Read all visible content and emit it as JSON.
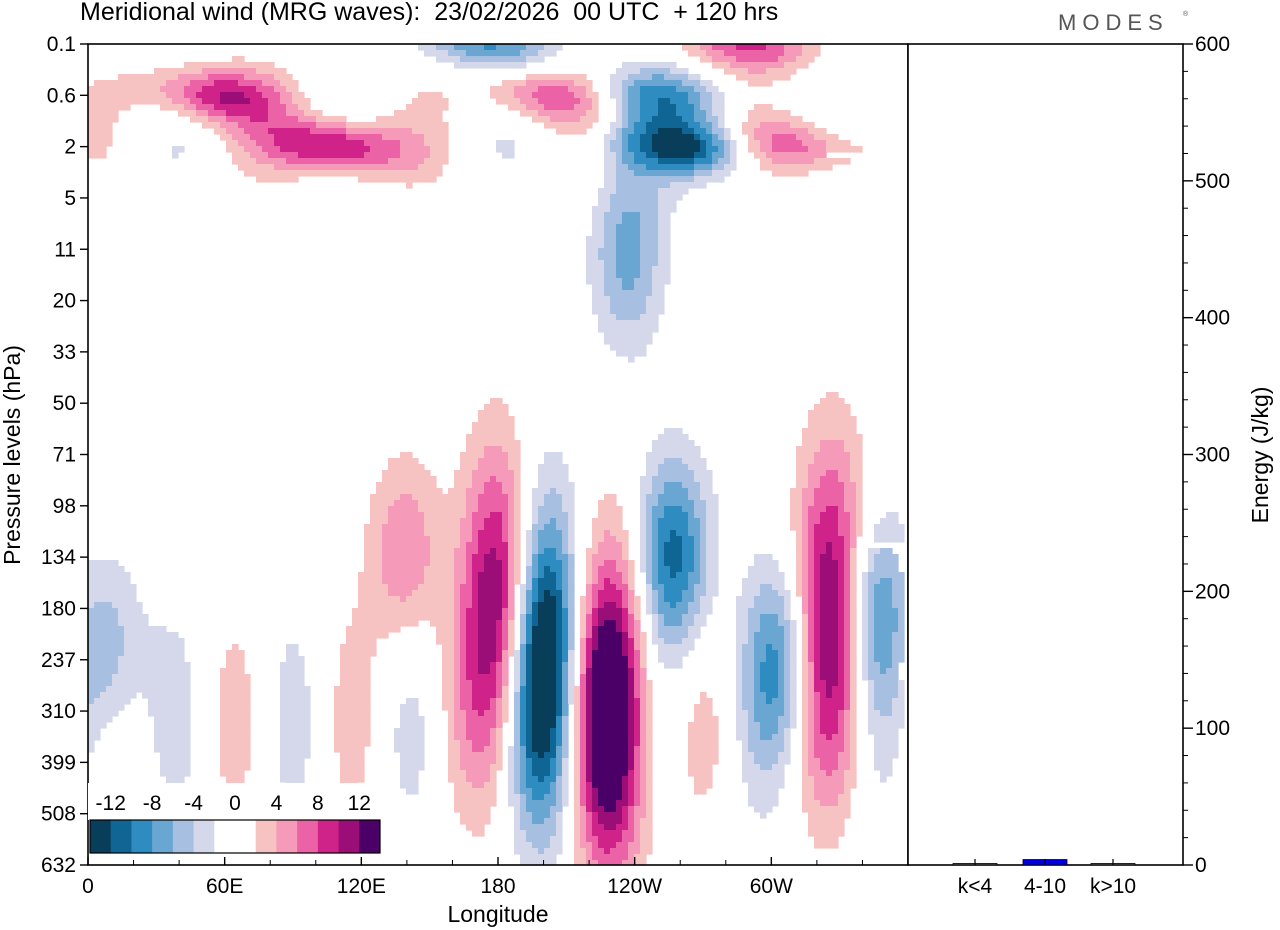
{
  "header": {
    "title": "Meridional wind (MRG waves):  23/02/2026  00 UTC  + 120 hrs",
    "brand": "MODES",
    "brand_mark": "®"
  },
  "colors": {
    "neg": [
      "#083e5a",
      "#0f6694",
      "#2e8cc1",
      "#6aa6d2",
      "#a7bfe0",
      "#d5d8ea"
    ],
    "zero": "#ffffff",
    "pos": [
      "#f7c3c2",
      "#f59ab8",
      "#ec62a7",
      "#cf238a",
      "#9b0d77",
      "#4a0066"
    ],
    "bar": "#0000dd"
  },
  "chart_data": [
    {
      "type": "heatmap",
      "title": "Meridional wind (MRG waves):  23/02/2026  00 UTC  + 120 hrs",
      "xlabel": "Longitude",
      "ylabel": "Pressure levels (hPa)",
      "x_ticks": [
        "0",
        "60E",
        "120E",
        "180",
        "120W",
        "60W"
      ],
      "y_levels": [
        "0.1",
        "0.6",
        "2",
        "5",
        "11",
        "20",
        "33",
        "50",
        "71",
        "98",
        "134",
        "180",
        "237",
        "310",
        "399",
        "508",
        "632"
      ],
      "colorbar": {
        "labels": [
          "-12",
          "-8",
          "-4",
          "0",
          "4",
          "8",
          "12"
        ],
        "levels": [
          -14,
          -12,
          -10,
          -8,
          -6,
          -4,
          -2,
          2,
          4,
          6,
          8,
          10,
          12,
          14
        ]
      },
      "features": [
        {
          "lon": 200,
          "level": "237",
          "sign": -1,
          "amplitude": 18
        },
        {
          "lon": 230,
          "level": "310",
          "sign": 1,
          "amplitude": 18
        },
        {
          "lon": 181,
          "level": "180",
          "sign": 1,
          "amplitude": 14
        },
        {
          "lon": 257,
          "level": "134",
          "sign": -1,
          "amplitude": 11
        },
        {
          "lon": 327,
          "level": "180",
          "sign": 1,
          "amplitude": 14
        },
        {
          "lon": 344,
          "level": "180",
          "sign": -1,
          "amplitude": 9
        },
        {
          "lon": 305,
          "level": "237",
          "sign": -1,
          "amplitude": 8
        },
        {
          "lon": 9,
          "level": "237",
          "sign": -1,
          "amplitude": 7
        },
        {
          "lon": 139,
          "level": "134",
          "sign": 1,
          "amplitude": 6
        },
        {
          "lon": 237,
          "level": "11",
          "sign": -1,
          "amplitude": 7
        },
        {
          "lon": 108,
          "level": "2",
          "sign": 1,
          "amplitude": 12
        },
        {
          "lon": 56,
          "level": "0.6",
          "sign": 1,
          "amplitude": 10
        },
        {
          "lon": 175,
          "level": "0.1",
          "sign": -1,
          "amplitude": 8
        },
        {
          "lon": 202,
          "level": "0.6",
          "sign": 1,
          "amplitude": 8
        },
        {
          "lon": 248,
          "level": "0.6",
          "sign": -1,
          "amplitude": 8
        },
        {
          "lon": 264,
          "level": "2",
          "sign": -1,
          "amplitude": 12
        },
        {
          "lon": 290,
          "level": "0.1",
          "sign": 1,
          "amplitude": 8
        },
        {
          "lon": 310,
          "level": "2",
          "sign": 1,
          "amplitude": 8
        }
      ]
    },
    {
      "type": "bar",
      "categories": [
        "k<4",
        "4-10",
        "k>10"
      ],
      "values": [
        0,
        4,
        0
      ],
      "ylabel": "Energy (J/kg)",
      "ylim": [
        0,
        600
      ],
      "y_ticks": [
        "0",
        "100",
        "200",
        "300",
        "400",
        "500",
        "600"
      ]
    }
  ]
}
